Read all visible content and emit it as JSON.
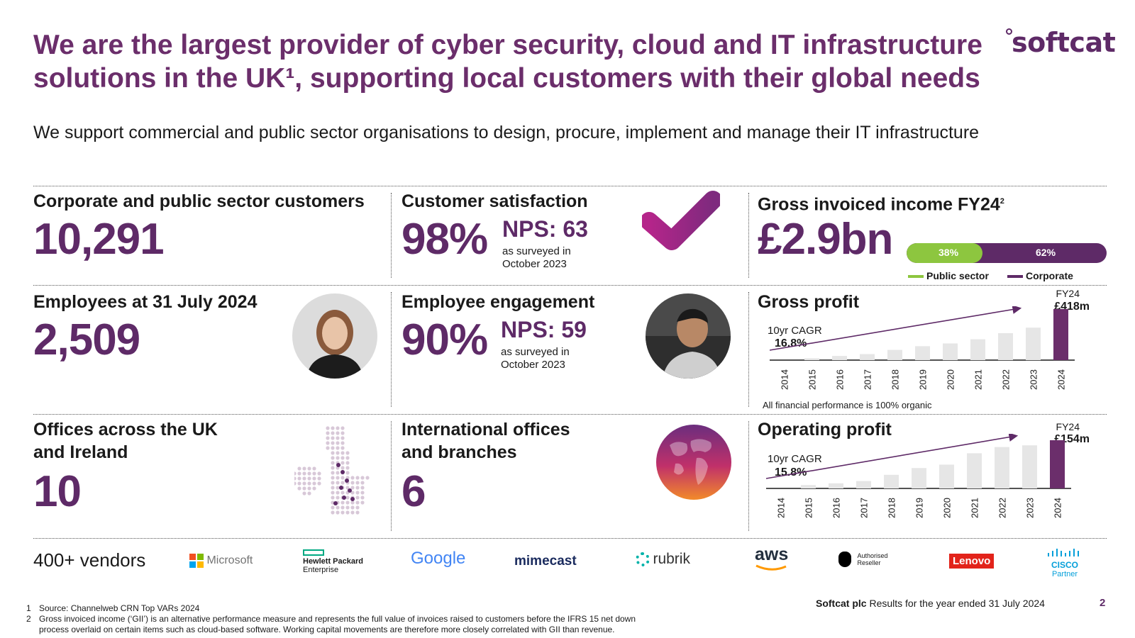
{
  "title_line1": "We are the largest provider of cyber security, cloud and IT infrastructure",
  "title_line2": "solutions in the UK¹, supporting local customers with their global needs",
  "logo_text": "softcat",
  "subtitle": "We support commercial and public sector organisations to design, procure, implement and manage their IT infrastructure",
  "customers": {
    "label": "Corporate and public sector customers",
    "value": "10,291"
  },
  "satisfaction": {
    "label": "Customer satisfaction",
    "value": "98%",
    "nps": "NPS: 63",
    "note1": "as surveyed in",
    "note2": "October 2023"
  },
  "gii": {
    "label": "Gross invoiced income FY24",
    "sup": "2",
    "value": "£2.9bn",
    "public_pct": "38%",
    "corporate_pct": "62%",
    "public_share": 0.38,
    "public_label": "Public sector",
    "corporate_label": "Corporate",
    "public_color": "#8dc63f",
    "corporate_color": "#5e2a67"
  },
  "employees": {
    "label": "Employees at 31 July 2024",
    "value": "2,509"
  },
  "engagement": {
    "label": "Employee engagement",
    "value": "90%",
    "nps": "NPS: 59",
    "note1": "as surveyed in",
    "note2": "October 2023"
  },
  "offices": {
    "label1": "Offices across the UK",
    "label2": "and Ireland",
    "value": "10"
  },
  "intl": {
    "label1": "International offices",
    "label2": "and branches",
    "value": "6"
  },
  "gross_profit": {
    "label": "Gross profit",
    "cagr_label": "10yr CAGR",
    "cagr_value": "16.8%",
    "fy_label": "FY24",
    "fy_value": "£418m"
  },
  "operating_profit": {
    "label": "Operating profit",
    "cagr_label": "10yr CAGR",
    "cagr_value": "15.8%",
    "fy_label": "FY24",
    "fy_value": "£154m"
  },
  "organic_note": "All financial performance is 100% organic",
  "chart_data": [
    {
      "type": "bar",
      "categories": [
        "2014",
        "2015",
        "2016",
        "2017",
        "2018",
        "2019",
        "2020",
        "2021",
        "2022",
        "2023",
        "2024"
      ],
      "values": [
        0,
        4,
        9,
        13,
        22,
        30,
        36,
        45,
        58,
        70,
        110
      ],
      "ylim": [
        0,
        110
      ]
    },
    {
      "type": "bar",
      "categories": [
        "2014",
        "2015",
        "2016",
        "2017",
        "2018",
        "2019",
        "2020",
        "2021",
        "2022",
        "2023",
        "2024"
      ],
      "values": [
        0,
        6,
        9,
        13,
        24,
        36,
        42,
        62,
        73,
        76,
        85
      ],
      "ylim": [
        0,
        85
      ]
    }
  ],
  "vendors": {
    "label": "400+ vendors",
    "microsoft": "Microsoft",
    "hpe1": "Hewlett Packard",
    "hpe2": "Enterprise",
    "google": "Google",
    "mimecast": "mimecast",
    "rubrik": "rubrik",
    "aws": "aws",
    "apple1": "Authorised",
    "apple2": "Reseller",
    "lenovo": "Lenovo",
    "cisco1": "CISCO",
    "cisco2": "Partner"
  },
  "footer": {
    "company": "Softcat plc",
    "text": " Results for the year ended 31 July 2024",
    "page": "2"
  },
  "footnotes": [
    {
      "n": "1",
      "text": "Source: Channelweb CRN Top VARs 2024"
    },
    {
      "n": "2",
      "text": "Gross invoiced income (‘GII’) is an alternative performance measure and represents the full value of invoices raised to customers before the IFRS 15 net down"
    },
    {
      "n": "",
      "text": "process overlaid on certain items such as cloud-based software. Working capital movements are therefore more closely correlated with GII than revenue."
    }
  ]
}
